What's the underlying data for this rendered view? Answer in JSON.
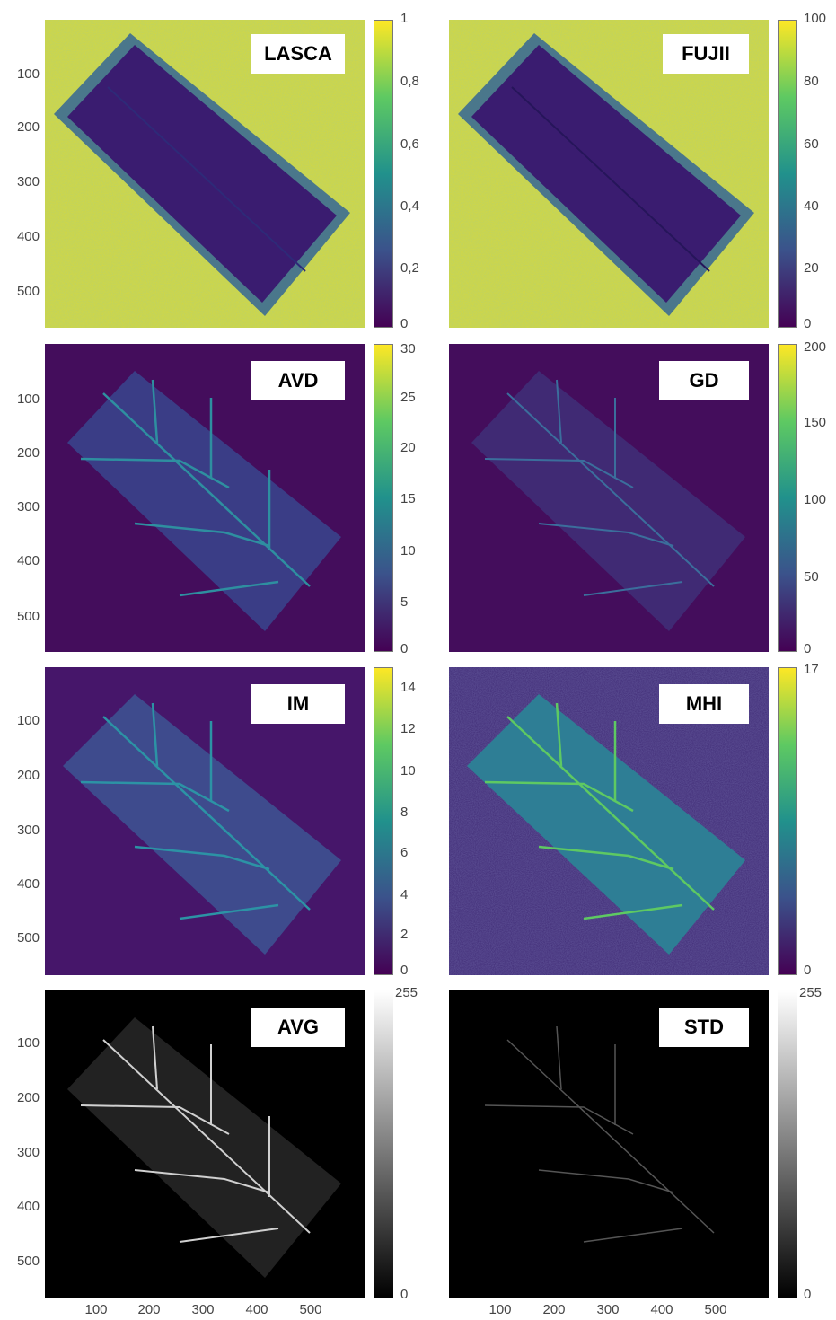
{
  "panels": [
    {
      "label": "LASCA",
      "colorbar": {
        "ticks": [
          "1",
          "0,8",
          "0,6",
          "0,4",
          "0,2",
          "0"
        ]
      }
    },
    {
      "label": "FUJII",
      "colorbar": {
        "ticks": [
          "100",
          "80",
          "60",
          "40",
          "20",
          "0"
        ]
      }
    },
    {
      "label": "AVD",
      "colorbar": {
        "ticks": [
          "30",
          "25",
          "20",
          "15",
          "10",
          "5",
          "0"
        ]
      }
    },
    {
      "label": "GD",
      "colorbar": {
        "ticks": [
          "200",
          "150",
          "100",
          "50",
          "0"
        ]
      }
    },
    {
      "label": "IM",
      "colorbar": {
        "ticks": [
          "14",
          "12",
          "10",
          "8",
          "6",
          "4",
          "2",
          "0"
        ]
      }
    },
    {
      "label": "MHI",
      "colorbar": {
        "ticks": [
          "17",
          "0"
        ]
      }
    },
    {
      "label": "AVG",
      "colorbar": {
        "ticks": [
          "255",
          "0"
        ]
      }
    },
    {
      "label": "STD",
      "colorbar": {
        "ticks": [
          "255",
          "0"
        ]
      }
    }
  ],
  "y_ticks": [
    "100",
    "200",
    "300",
    "400",
    "500"
  ],
  "x_ticks": [
    "100",
    "200",
    "300",
    "400",
    "500"
  ],
  "colors": {
    "viridis_yellow": "#d8dc3a",
    "viridis_purple": "#440154",
    "viridis_dark": "#3b1f6e",
    "viridis_teal": "#21918c",
    "viridis_green": "#5ec962",
    "gray_black": "#000000"
  }
}
